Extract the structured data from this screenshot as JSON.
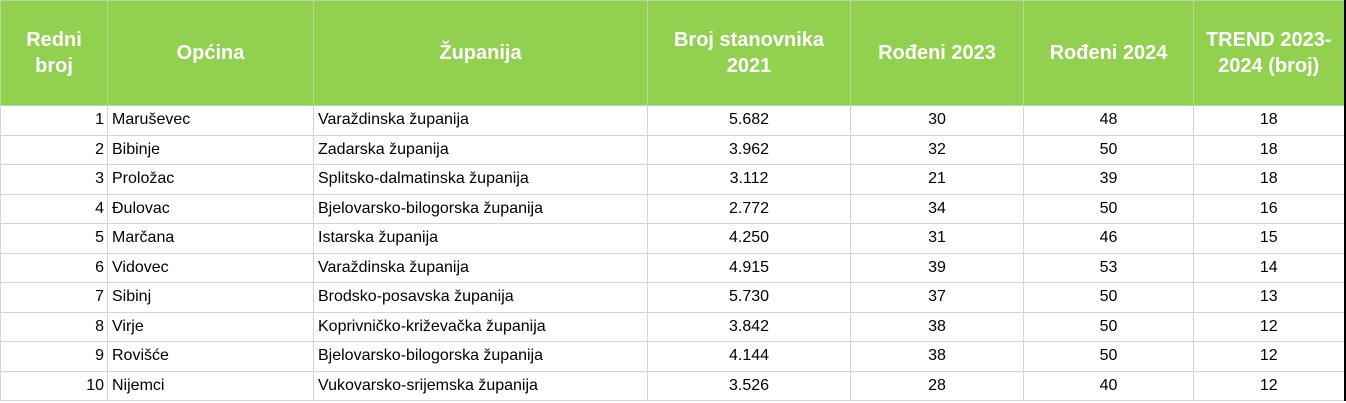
{
  "table": {
    "headers": [
      "Redni broj",
      "Općina",
      "Županija",
      "Broj stanovnika 2021",
      "Rođeni 2023",
      "Rođeni 2024",
      "TREND 2023-2024 (broj)"
    ],
    "rows": [
      [
        1,
        "Maruševec",
        "Varaždinska županija",
        "5.682",
        30,
        48,
        18
      ],
      [
        2,
        "Bibinje",
        "Zadarska županija",
        "3.962",
        32,
        50,
        18
      ],
      [
        3,
        "Proložac",
        "Splitsko-dalmatinska županija",
        "3.112",
        21,
        39,
        18
      ],
      [
        4,
        "Đulovac",
        "Bjelovarsko-bilogorska županija",
        "2.772",
        34,
        50,
        16
      ],
      [
        5,
        "Marčana",
        "Istarska županija",
        "4.250",
        31,
        46,
        15
      ],
      [
        6,
        "Vidovec",
        "Varaždinska županija",
        "4.915",
        39,
        53,
        14
      ],
      [
        7,
        "Sibinj",
        "Brodsko-posavska županija",
        "5.730",
        37,
        50,
        13
      ],
      [
        8,
        "Virje",
        "Koprivničko-križevačka županija",
        "3.842",
        38,
        50,
        12
      ],
      [
        9,
        "Rovišće",
        "Bjelovarsko-bilogorska županija",
        "4.144",
        38,
        50,
        12
      ],
      [
        10,
        "Nijemci",
        "Vukovarsko-srijemska županija",
        "3.526",
        28,
        40,
        12
      ]
    ]
  }
}
